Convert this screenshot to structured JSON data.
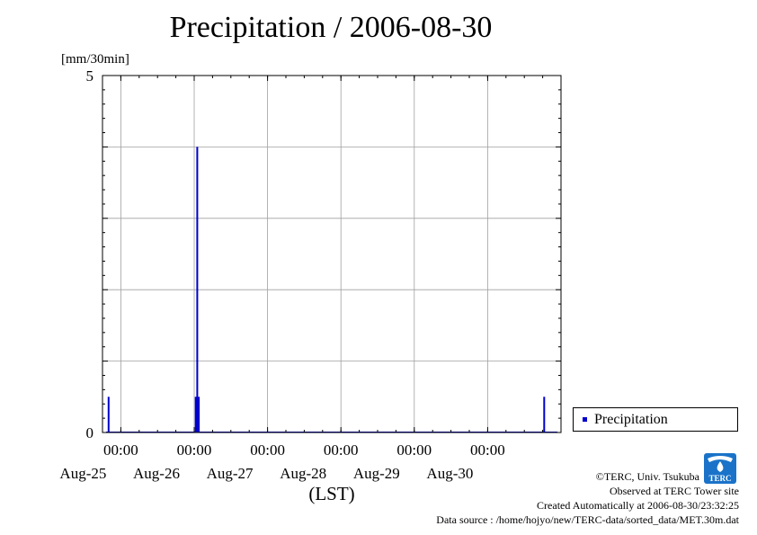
{
  "chart_data": {
    "type": "bar",
    "title": "Precipitation / 2006-08-30",
    "ylabel": "[mm/30min]",
    "xlabel": "(LST)",
    "ylim": [
      0,
      5
    ],
    "y_ticks": [
      0,
      5
    ],
    "xlim": [
      "2006-08-24T18:00",
      "2006-08-30T24:00"
    ],
    "x_ticks": [
      {
        "time": "2006-08-25T00:00",
        "label_time": "00:00",
        "label_date": "Aug-25"
      },
      {
        "time": "2006-08-26T00:00",
        "label_time": "00:00",
        "label_date": "Aug-26"
      },
      {
        "time": "2006-08-27T00:00",
        "label_time": "00:00",
        "label_date": "Aug-27"
      },
      {
        "time": "2006-08-28T00:00",
        "label_time": "00:00",
        "label_date": "Aug-28"
      },
      {
        "time": "2006-08-29T00:00",
        "label_time": "00:00",
        "label_date": "Aug-29"
      },
      {
        "time": "2006-08-30T00:00",
        "label_time": "00:00",
        "label_date": "Aug-30"
      }
    ],
    "grid": true,
    "legend_position": "right",
    "series": [
      {
        "name": "Precipitation",
        "color": "#0000cc",
        "points": [
          {
            "t": "2006-08-24T20:00",
            "v": 0.5
          },
          {
            "t": "2006-08-26T00:30",
            "v": 0.5
          },
          {
            "t": "2006-08-26T01:00",
            "v": 4.0
          },
          {
            "t": "2006-08-26T01:30",
            "v": 0.5
          },
          {
            "t": "2006-08-30T18:30",
            "v": 0.5
          }
        ]
      }
    ]
  },
  "footer": {
    "copyright": "©TERC, Univ. Tsukuba",
    "site": "Observed at TERC Tower site",
    "created": "Created Automatically at 2006-08-30/23:32:25",
    "source": "Data source : /home/hojyo/new/TERC-data/sorted_data/MET.30m.dat"
  },
  "logo": {
    "text": "TERC",
    "color": "#1a73c9"
  }
}
